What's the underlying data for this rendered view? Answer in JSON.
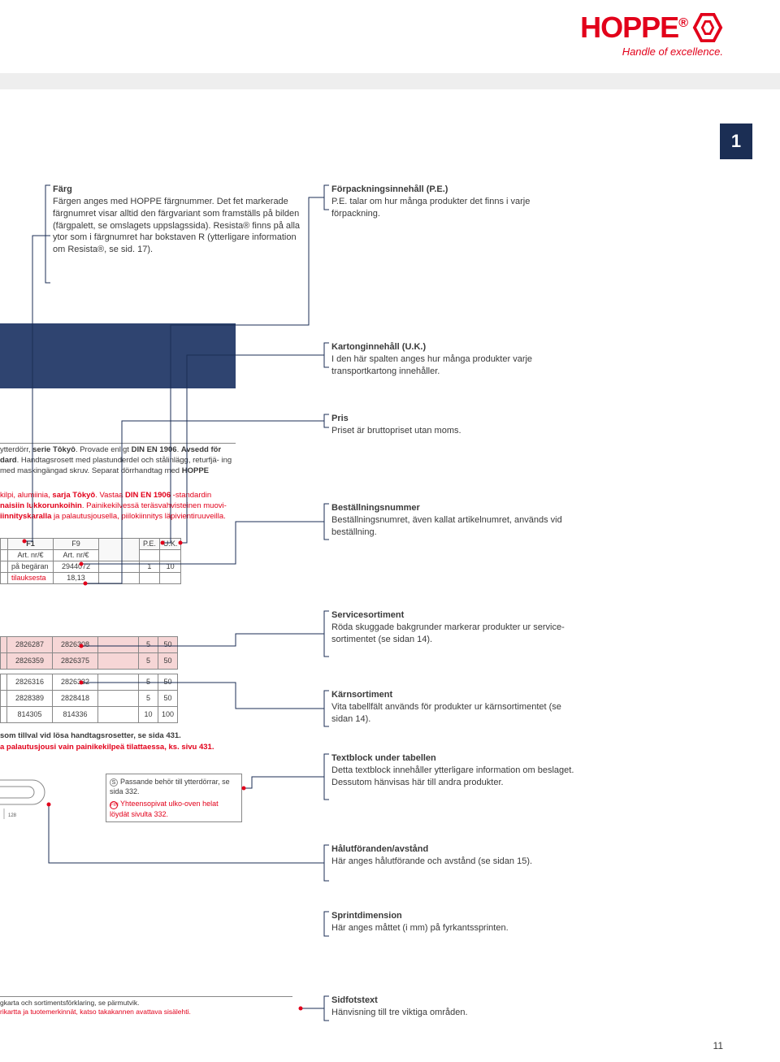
{
  "logo": {
    "text": "HOPPE",
    "tagline": "Handle of excellence.",
    "brand_color": "#e2001a"
  },
  "page_tab": "1",
  "page_number": "11",
  "blocks": {
    "farg": {
      "title": "Färg",
      "body": "Färgen anges med HOPPE färgnummer. Det fet markerade färgnumret visar alltid den färgvariant som framställs på bilden (färgpalett, se omslagets uppslagssida). Resista® finns på alla ytor som i färgnumret har bokstaven R (ytterligare information om Resista®, se sid. 17)."
    },
    "forpack": {
      "title": "Förpackningsinnehåll (P.E.)",
      "body": "P.E. talar om hur många produkter det finns i varje förpackning."
    },
    "kartong": {
      "title": "Kartonginnehåll (U.K.)",
      "body": "I den här spalten anges hur många produkter varje transportkartong innehåller."
    },
    "pris": {
      "title": "Pris",
      "body": "Priset är bruttopriset utan moms."
    },
    "bestall": {
      "title": "Beställningsnummer",
      "body": "Beställningsnumret, även kallat artikelnumret, används vid beställning."
    },
    "service": {
      "title": "Servicesortiment",
      "body": "Röda skuggade bakgrunder markerar produkter ur service-sortimentet (se sidan 14)."
    },
    "karn": {
      "title": "Kärnsortiment",
      "body": "Vita tabellfält används för produkter ur kärnsortimentet (se sidan 14)."
    },
    "textblock": {
      "title": "Textblock under tabellen",
      "body": "Detta textblock innehåller ytterligare information om beslaget. Dessutom hänvisas här till andra produkter."
    },
    "halut": {
      "title": "Hålutföranden/avstånd",
      "body": "Här anges hålutförande och avstånd (se sidan 15)."
    },
    "sprint": {
      "title": "Sprintdimension",
      "body": "Här anges måttet (i mm) på fyrkantssprinten."
    },
    "sidfot": {
      "title": "Sidfotstext",
      "body": "Hänvisning till tre viktiga områden."
    }
  },
  "legend": {
    "sv_text": "ytterdörr, serie Tôkyô. Provade enligt DIN EN 1906. Avsedd för dard. Handtagsrosett med plastunderdel och stålinlägg, returfjä- ing med maskingängad skruv. Separat dörrhandtag med HOPPE",
    "fi_text": "kilpi, alumiinia, sarja Tôkyô. Vastaa DIN EN 1906 -standardin naisiin lukkorunkoihin. Painikekilvessä teräsvahvisteinen muovi- iinnityskaralla ja palautusjousella, piilokiinnitys läpivientiruuveilla.",
    "header": {
      "c1": "F1",
      "c2": "F9",
      "c3": "P.E.",
      "c4": "U.K."
    },
    "sub": {
      "c1": "Art. nr/€",
      "c2": "Art. nr/€"
    },
    "row1": {
      "c1": "på begäran",
      "c2": "2944072",
      "c3": "1",
      "c4": "10"
    },
    "row2": {
      "c1": "tilauksesta",
      "c2": "18,13"
    }
  },
  "data_table": {
    "rows": [
      {
        "a": "2826287",
        "b": "2826308",
        "pe": "5",
        "uk": "50",
        "pink": true
      },
      {
        "a": "2826359",
        "b": "2826375",
        "pe": "5",
        "uk": "50",
        "pink": true
      },
      {
        "a": "2826316",
        "b": "2826332",
        "pe": "5",
        "uk": "50",
        "pink": false
      },
      {
        "a": "2828389",
        "b": "2828418",
        "pe": "5",
        "uk": "50",
        "pink": false
      },
      {
        "a": "814305",
        "b": "814336",
        "pe": "10",
        "uk": "100",
        "pink": false
      }
    ]
  },
  "under_table": {
    "sv": "som tillval vid lösa handtagsrosetter, se sida 431.",
    "fi": "a palautusjousi vain painikekilpeä tilattaessa, ks. sivu 431."
  },
  "note_box": {
    "sv": "Passande behör till ytterdörrar, se sida 332.",
    "fi": "Yhteensopivat ulko-oven helat löydät sivulta 332."
  },
  "footer": {
    "sv": "gkarta och sortimentsförklaring, se pärmutvik.",
    "fi": "rikartta ja tuotemerkinnät, katso takakannen avattava sisälehti."
  }
}
